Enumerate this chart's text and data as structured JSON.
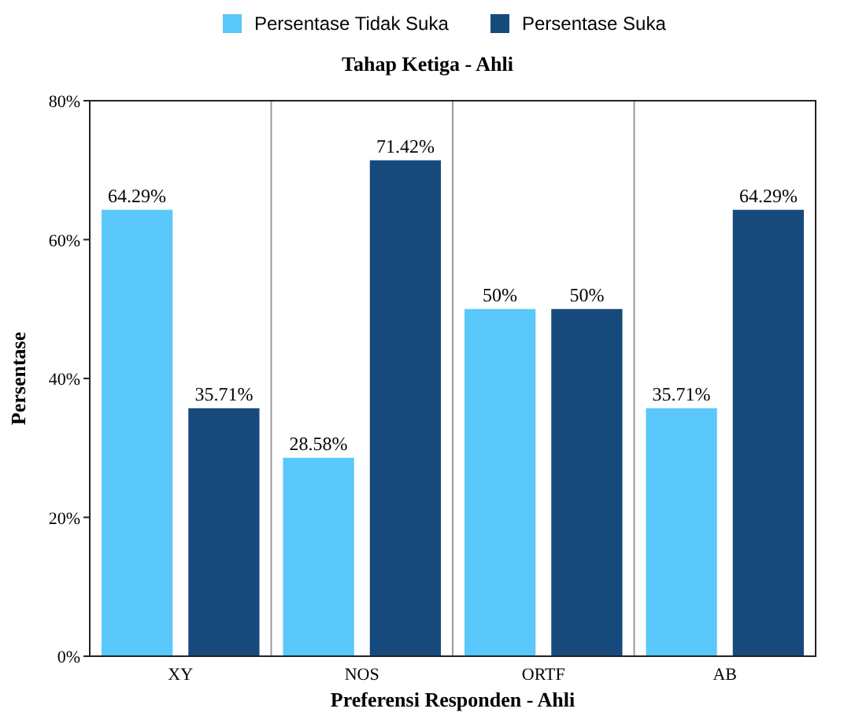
{
  "chart_data": {
    "type": "bar",
    "title": "Tahap Ketiga - Ahli",
    "xlabel": "Preferensi Responden - Ahli",
    "ylabel": "Persentase",
    "categories": [
      "XY",
      "NOS",
      "ORTF",
      "AB"
    ],
    "series": [
      {
        "name": "Persentase Tidak Suka",
        "color": "#5ac8fa",
        "values": [
          64.29,
          28.58,
          50,
          35.71
        ],
        "value_labels": [
          "64.29%",
          "28.58%",
          "50%",
          "35.71%"
        ]
      },
      {
        "name": "Persentase Suka",
        "color": "#174a7c",
        "values": [
          35.71,
          71.42,
          50,
          64.29
        ],
        "value_labels": [
          "35.71%",
          "71.42%",
          "50%",
          "64.29%"
        ]
      }
    ],
    "ylim": [
      0,
      80
    ],
    "yticks": [
      {
        "value": 0,
        "label": "0%"
      },
      {
        "value": 20,
        "label": "20%"
      },
      {
        "value": 40,
        "label": "40%"
      },
      {
        "value": 60,
        "label": "60%"
      },
      {
        "value": 80,
        "label": "80%"
      }
    ],
    "grid": "x",
    "legend": "top"
  }
}
